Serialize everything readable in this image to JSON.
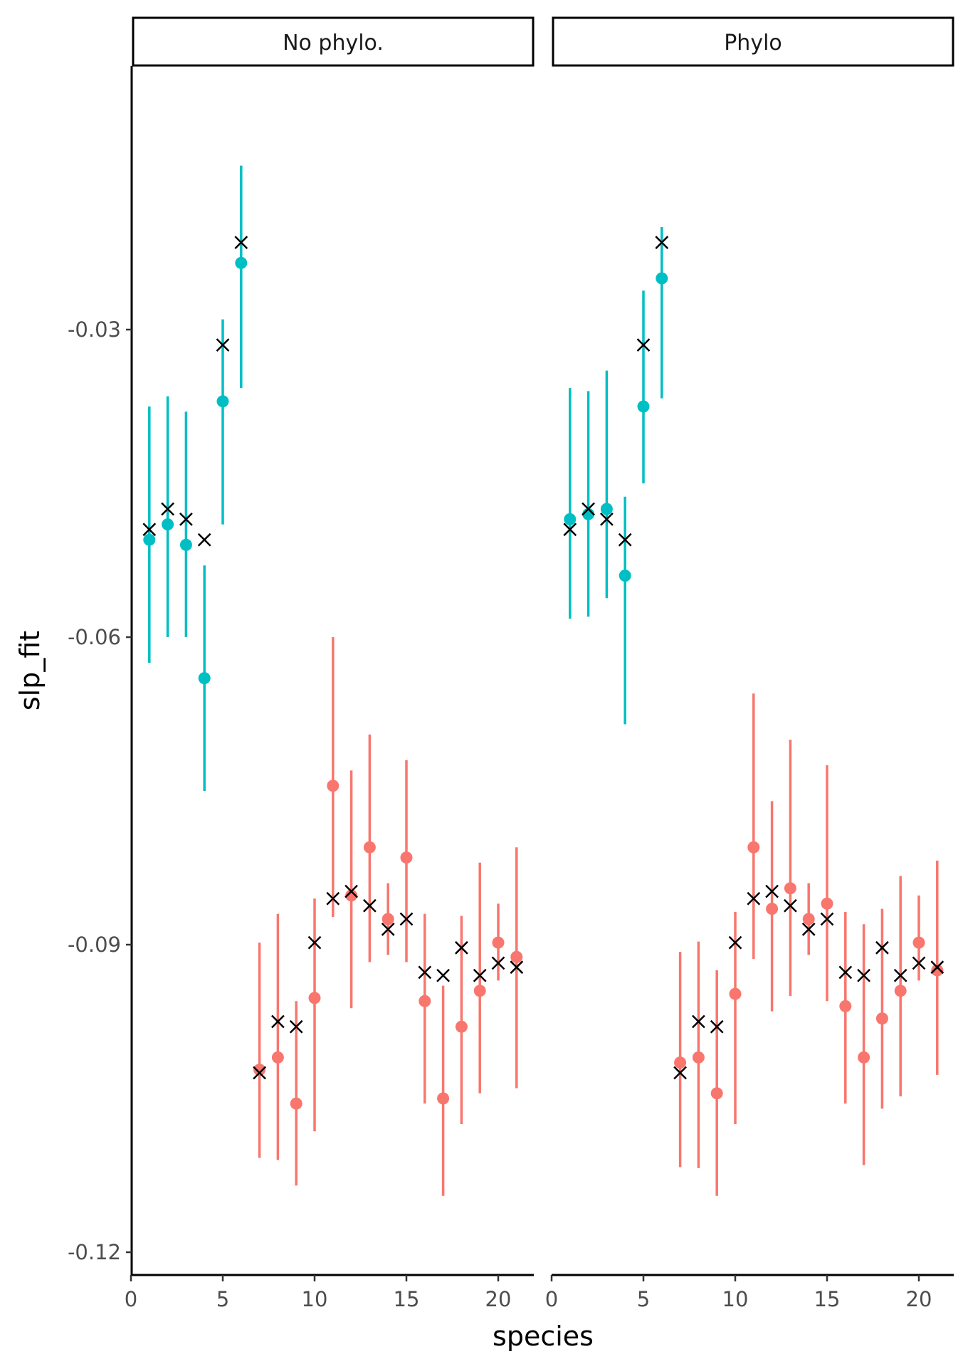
{
  "chart_data": {
    "type": "scatter",
    "xlabel": "species",
    "ylabel": "slp_fit",
    "xlim": [
      0,
      22
    ],
    "ylim": [
      -0.121,
      -0.0045
    ],
    "x_ticks": [
      0,
      5,
      10,
      15,
      20
    ],
    "x_tick_labels": [
      "0",
      "5",
      "10",
      "15",
      "20"
    ],
    "y_ticks": [
      -0.03,
      -0.06,
      -0.09,
      -0.12
    ],
    "y_tick_labels": [
      "-0.03",
      "-0.06",
      "-0.09",
      "-0.12"
    ],
    "grid": false,
    "legend": "none",
    "colors": {
      "group1": "#00BFC4",
      "group2": "#F8766D",
      "truth_marker": "#000000"
    },
    "truth_marker": "cross",
    "true_values": [
      [
        1,
        -0.0495
      ],
      [
        2,
        -0.0475
      ],
      [
        3,
        -0.0485
      ],
      [
        4,
        -0.0505
      ],
      [
        5,
        -0.0315
      ],
      [
        6,
        -0.0215
      ],
      [
        7,
        -0.1025
      ],
      [
        8,
        -0.0975
      ],
      [
        9,
        -0.098
      ],
      [
        10,
        -0.0898
      ],
      [
        11,
        -0.0855
      ],
      [
        12,
        -0.0848
      ],
      [
        13,
        -0.0862
      ],
      [
        14,
        -0.0885
      ],
      [
        15,
        -0.0875
      ],
      [
        16,
        -0.0927
      ],
      [
        17,
        -0.093
      ],
      [
        18,
        -0.0903
      ],
      [
        19,
        -0.093
      ],
      [
        20,
        -0.0918
      ],
      [
        21,
        -0.0922
      ]
    ],
    "panels": [
      {
        "title": "No phylo.",
        "series": [
          {
            "color": "#00BFC4",
            "points": [
              [
                1,
                -0.0505,
                -0.0625,
                -0.0375
              ],
              [
                2,
                -0.049,
                -0.06,
                -0.0365
              ],
              [
                3,
                -0.051,
                -0.06,
                -0.038
              ],
              [
                4,
                -0.064,
                -0.075,
                -0.053
              ],
              [
                5,
                -0.037,
                -0.049,
                -0.029
              ],
              [
                6,
                -0.0235,
                -0.0357,
                -0.014
              ]
            ]
          },
          {
            "color": "#F8766D",
            "points": [
              [
                7,
                -0.1022,
                -0.1108,
                -0.0898
              ],
              [
                8,
                -0.101,
                -0.111,
                -0.087
              ],
              [
                9,
                -0.1055,
                -0.1135,
                -0.0955
              ],
              [
                10,
                -0.0952,
                -0.1082,
                -0.0855
              ],
              [
                11,
                -0.0745,
                -0.0873,
                -0.06
              ],
              [
                12,
                -0.0852,
                -0.0962,
                -0.073
              ],
              [
                13,
                -0.0805,
                -0.0917,
                -0.0695
              ],
              [
                14,
                -0.0875,
                -0.091,
                -0.084
              ],
              [
                15,
                -0.0815,
                -0.0917,
                -0.072
              ],
              [
                16,
                -0.0955,
                -0.1055,
                -0.087
              ],
              [
                17,
                -0.105,
                -0.1145,
                -0.094
              ],
              [
                18,
                -0.098,
                -0.1075,
                -0.0872
              ],
              [
                19,
                -0.0945,
                -0.1045,
                -0.082
              ],
              [
                20,
                -0.0898,
                -0.0935,
                -0.086
              ],
              [
                21,
                -0.0912,
                -0.104,
                -0.0805
              ]
            ]
          }
        ]
      },
      {
        "title": "Phylo",
        "series": [
          {
            "color": "#00BFC4",
            "points": [
              [
                1,
                -0.0485,
                -0.0582,
                -0.0357
              ],
              [
                2,
                -0.048,
                -0.058,
                -0.036
              ],
              [
                3,
                -0.0475,
                -0.0562,
                -0.034
              ],
              [
                4,
                -0.054,
                -0.0685,
                -0.0463
              ],
              [
                5,
                -0.0375,
                -0.045,
                -0.0262
              ],
              [
                6,
                -0.025,
                -0.0367,
                -0.02
              ]
            ]
          },
          {
            "color": "#F8766D",
            "points": [
              [
                7,
                -0.1015,
                -0.1117,
                -0.0907
              ],
              [
                8,
                -0.101,
                -0.1118,
                -0.0897
              ],
              [
                9,
                -0.1045,
                -0.1145,
                -0.0925
              ],
              [
                10,
                -0.0948,
                -0.1075,
                -0.0868
              ],
              [
                11,
                -0.0805,
                -0.0914,
                -0.0655
              ],
              [
                12,
                -0.0865,
                -0.0965,
                -0.076
              ],
              [
                13,
                -0.0845,
                -0.095,
                -0.07
              ],
              [
                14,
                -0.0875,
                -0.091,
                -0.084
              ],
              [
                15,
                -0.086,
                -0.0955,
                -0.0725
              ],
              [
                16,
                -0.096,
                -0.1055,
                -0.0868
              ],
              [
                17,
                -0.101,
                -0.1115,
                -0.088
              ],
              [
                18,
                -0.0972,
                -0.106,
                -0.0865
              ],
              [
                19,
                -0.0945,
                -0.1048,
                -0.0833
              ],
              [
                20,
                -0.0898,
                -0.0935,
                -0.0852
              ],
              [
                21,
                -0.0925,
                -0.1027,
                -0.0818
              ]
            ]
          }
        ]
      }
    ]
  }
}
